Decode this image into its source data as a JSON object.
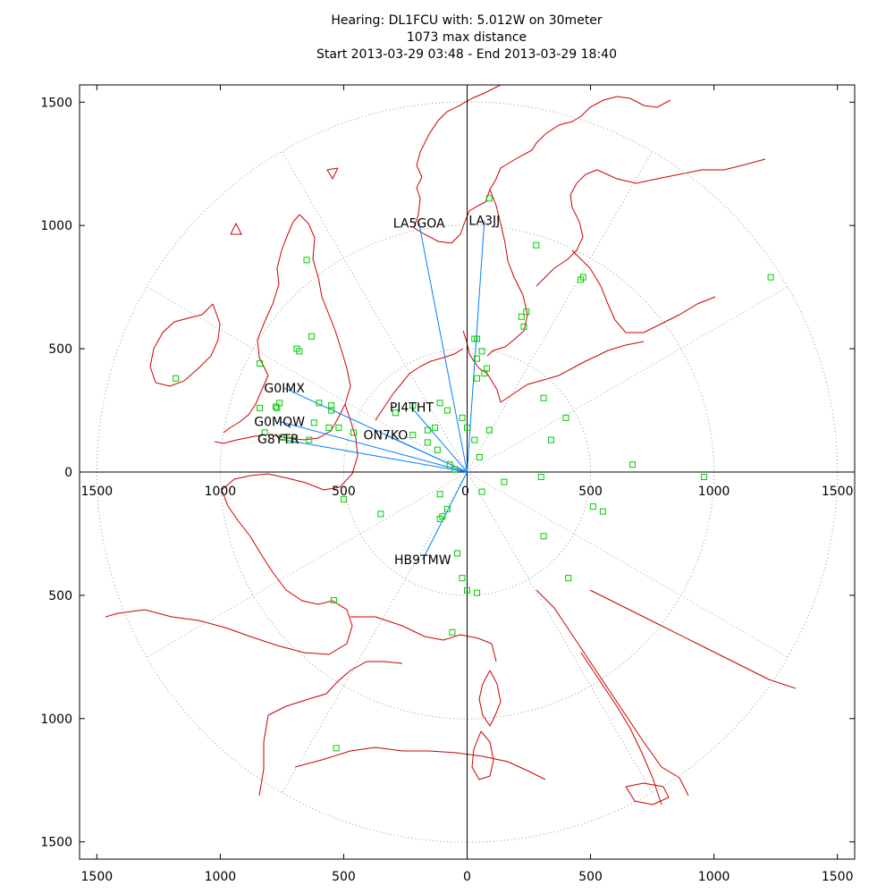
{
  "title": {
    "line1": "Hearing: DL1FCU with: 5.012W on 30meter",
    "line2": "1073 max distance",
    "line3": "Start 2013-03-29 03:48 - End 2013-03-29 18:40"
  },
  "chart_data": {
    "type": "scatter",
    "title": "Hearing: DL1FCU with: 5.012W on 30meter",
    "subtitle": [
      "1073 max distance",
      "Start 2013-03-29 03:48 - End 2013-03-29 18:40"
    ],
    "xlim": [
      -1570,
      1570
    ],
    "ylim": [
      -1570,
      1570
    ],
    "x_ticks": [
      -1500,
      -1000,
      -500,
      0,
      500,
      1000,
      1500
    ],
    "y_ticks": [
      -1500,
      -1000,
      -500,
      0,
      500,
      1000,
      1500
    ],
    "x_tick_labels": [
      "1500",
      "1000",
      "500",
      "0",
      "500",
      "1000",
      "1500"
    ],
    "y_tick_labels": [
      "1500",
      "1000",
      "500",
      "0",
      "500",
      "1000",
      "1500"
    ],
    "polar_grid": {
      "ring_radii": [
        500,
        1000,
        1500
      ],
      "spoke_angles_deg": [
        0,
        30,
        60,
        90,
        120,
        150,
        180,
        210,
        240,
        270,
        300,
        330
      ],
      "style": "dotted"
    },
    "colors": {
      "spots": "#00cc00",
      "paths": "#0080ff",
      "coast": "#cc0000",
      "grid": "#999999",
      "axes": "#000000"
    },
    "reporters": [
      {
        "name": "LA5GOA",
        "x": -195,
        "y": 1010
      },
      {
        "name": "LA3JJ",
        "x": 70,
        "y": 1020
      },
      {
        "name": "G0IMX",
        "x": -740,
        "y": 340
      },
      {
        "name": "PI4THT",
        "x": -225,
        "y": 262
      },
      {
        "name": "G0MQW",
        "x": -760,
        "y": 205
      },
      {
        "name": "G8YTR",
        "x": -765,
        "y": 135
      },
      {
        "name": "ON7KO",
        "x": -330,
        "y": 150
      },
      {
        "name": "HB9TMW",
        "x": -180,
        "y": -355
      }
    ],
    "spots": [
      [
        -1180,
        380
      ],
      [
        -840,
        440
      ],
      [
        -820,
        160
      ],
      [
        -840,
        260
      ],
      [
        -775,
        265
      ],
      [
        -760,
        280
      ],
      [
        -770,
        260
      ],
      [
        -750,
        140
      ],
      [
        -720,
        130
      ],
      [
        -700,
        130
      ],
      [
        -650,
        860
      ],
      [
        -630,
        550
      ],
      [
        -680,
        490
      ],
      [
        -690,
        500
      ],
      [
        -600,
        280
      ],
      [
        -560,
        180
      ],
      [
        -550,
        250
      ],
      [
        -550,
        270
      ],
      [
        -520,
        180
      ],
      [
        -620,
        200
      ],
      [
        -640,
        130
      ],
      [
        -500,
        -110
      ],
      [
        -460,
        160
      ],
      [
        -350,
        -170
      ],
      [
        -290,
        240
      ],
      [
        -220,
        270
      ],
      [
        -220,
        150
      ],
      [
        -160,
        120
      ],
      [
        -160,
        170
      ],
      [
        -130,
        180
      ],
      [
        -120,
        90
      ],
      [
        -110,
        280
      ],
      [
        -80,
        250
      ],
      [
        -70,
        30
      ],
      [
        -50,
        10
      ],
      [
        -20,
        220
      ],
      [
        0,
        180
      ],
      [
        30,
        540
      ],
      [
        40,
        540
      ],
      [
        40,
        460
      ],
      [
        40,
        380
      ],
      [
        50,
        60
      ],
      [
        60,
        490
      ],
      [
        70,
        400
      ],
      [
        80,
        420
      ],
      [
        90,
        170
      ],
      [
        30,
        130
      ],
      [
        60,
        -80
      ],
      [
        -110,
        -90
      ],
      [
        -80,
        -150
      ],
      [
        -100,
        -180
      ],
      [
        -110,
        -190
      ],
      [
        -40,
        -330
      ],
      [
        -20,
        -430
      ],
      [
        0,
        -480
      ],
      [
        40,
        -490
      ],
      [
        -60,
        -650
      ],
      [
        150,
        -40
      ],
      [
        230,
        590
      ],
      [
        220,
        630
      ],
      [
        240,
        650
      ],
      [
        280,
        920
      ],
      [
        310,
        300
      ],
      [
        300,
        -20
      ],
      [
        310,
        -260
      ],
      [
        340,
        130
      ],
      [
        400,
        220
      ],
      [
        410,
        -430
      ],
      [
        460,
        780
      ],
      [
        470,
        790
      ],
      [
        510,
        -140
      ],
      [
        550,
        -160
      ],
      [
        670,
        30
      ],
      [
        960,
        -20
      ],
      [
        1230,
        790
      ],
      [
        -540,
        -520
      ],
      [
        -530,
        -1120
      ],
      [
        90,
        1110
      ]
    ]
  }
}
